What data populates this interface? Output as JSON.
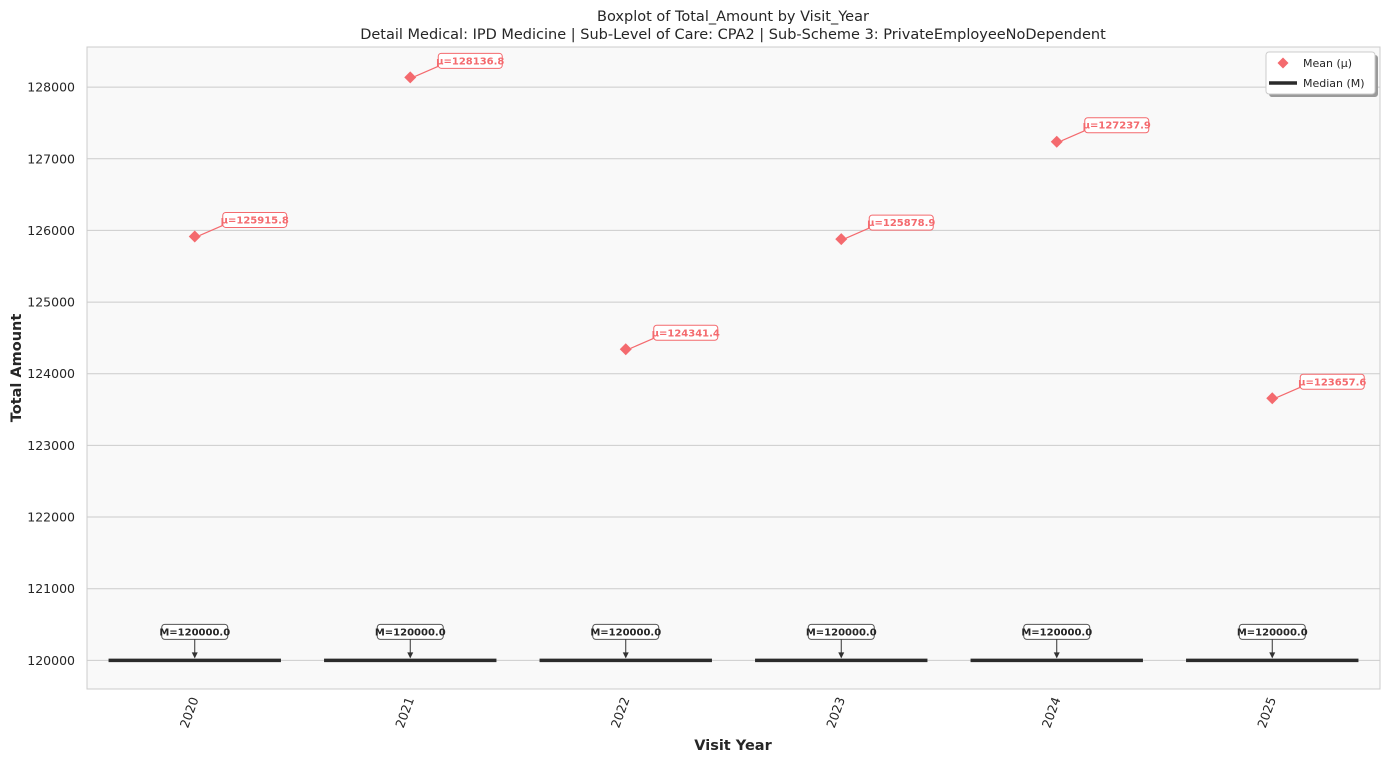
{
  "chart_data": {
    "type": "box",
    "title": "Boxplot of Total_Amount by Visit_Year",
    "subtitle": "Detail Medical: IPD Medicine | Sub-Level of Care: CPA2 | Sub-Scheme 3: PrivateEmployeeNoDependent",
    "xlabel": "Visit Year",
    "ylabel": "Total Amount",
    "categories": [
      "2020",
      "2021",
      "2022",
      "2023",
      "2024",
      "2025"
    ],
    "median": [
      120000.0,
      120000.0,
      120000.0,
      120000.0,
      120000.0,
      120000.0
    ],
    "mean": [
      125915.8,
      128136.8,
      124341.4,
      125878.9,
      127237.9,
      123657.6
    ],
    "mean_labels": [
      "μ=125915.8",
      "μ=128136.8",
      "μ=124341.4",
      "μ=125878.9",
      "μ=127237.9",
      "μ=123657.6"
    ],
    "median_labels": [
      "M=120000.0",
      "M=120000.0",
      "M=120000.0",
      "M=120000.0",
      "M=120000.0",
      "M=120000.0"
    ],
    "ylim": [
      119600,
      128560
    ],
    "yticks": [
      120000,
      121000,
      122000,
      123000,
      124000,
      125000,
      126000,
      127000,
      128000
    ],
    "ytick_labels": [
      "120000",
      "121000",
      "122000",
      "123000",
      "124000",
      "125000",
      "126000",
      "127000",
      "128000"
    ],
    "grid": "horizontal",
    "legend": {
      "placement": "top-right",
      "entries": [
        {
          "label": "Mean (μ)",
          "marker": "diamond"
        },
        {
          "label": "Median (M)",
          "marker": "line"
        }
      ]
    },
    "colors": {
      "mean": "#f46a6e",
      "median": "#2b2b2b",
      "plot_bg": "#f9f9f9",
      "grid": "#cccccc",
      "text": "#262626"
    }
  }
}
